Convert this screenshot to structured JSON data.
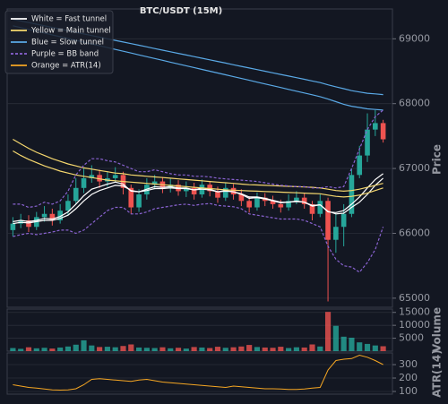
{
  "chart_data": {
    "type": "candlestick",
    "title": "BTC/USDT (15M)",
    "ylabel": "Price",
    "grid": true,
    "up_color": "#26a69a",
    "down_color": "#ef5350",
    "ylim": [
      64860,
      69460
    ],
    "yticks": [
      65000,
      66000,
      67000,
      68000,
      69000
    ],
    "candles": {
      "open": [
        66050,
        66150,
        66200,
        66100,
        66250,
        66300,
        66200,
        66350,
        66500,
        66700,
        66850,
        66900,
        66800,
        66850,
        66900,
        66700,
        66400,
        66600,
        66750,
        66800,
        66700,
        66750,
        66650,
        66700,
        66600,
        66750,
        66650,
        66550,
        66700,
        66600,
        66500,
        66400,
        66550,
        66500,
        66450,
        66400,
        66500,
        66550,
        66450,
        66300,
        66500,
        65900,
        66100,
        66300,
        66900,
        67200,
        67600,
        67700
      ],
      "high": [
        66250,
        66300,
        66280,
        66330,
        66420,
        66380,
        66450,
        66600,
        66850,
        67000,
        67050,
        66980,
        66950,
        67020,
        66950,
        66750,
        66680,
        66850,
        66900,
        66870,
        66850,
        66820,
        66800,
        66780,
        66830,
        66800,
        66720,
        66780,
        66760,
        66680,
        66570,
        66630,
        66620,
        66580,
        66520,
        66600,
        66650,
        66620,
        66500,
        66600,
        66550,
        66300,
        66450,
        67000,
        67350,
        67850,
        67900,
        67750
      ],
      "low": [
        65950,
        66080,
        66020,
        66050,
        66180,
        66120,
        66150,
        66280,
        66450,
        66620,
        66780,
        66700,
        66720,
        66780,
        66600,
        66300,
        66330,
        66520,
        66680,
        66620,
        66630,
        66580,
        66560,
        66520,
        66550,
        66570,
        66470,
        66500,
        66520,
        66420,
        66320,
        66350,
        66420,
        66380,
        66320,
        66350,
        66450,
        66380,
        66200,
        66250,
        64950,
        65700,
        65800,
        66250,
        66850,
        67100,
        67500,
        67400
      ],
      "close": [
        66150,
        66200,
        66100,
        66250,
        66300,
        66200,
        66350,
        66500,
        66700,
        66850,
        66900,
        66800,
        66850,
        66900,
        66700,
        66400,
        66600,
        66750,
        66800,
        66700,
        66750,
        66650,
        66700,
        66600,
        66750,
        66650,
        66550,
        66700,
        66600,
        66500,
        66400,
        66550,
        66500,
        66450,
        66400,
        66500,
        66550,
        66450,
        66300,
        66500,
        65900,
        66100,
        66300,
        66900,
        67200,
        67600,
        67700,
        67450
      ]
    },
    "overlays": [
      {
        "name": "White = Fast tunnel",
        "color": "#ffffff",
        "style": "solid",
        "lines": [
          [
            66180,
            66200,
            66180,
            66200,
            66230,
            66220,
            66260,
            66330,
            66450,
            66580,
            66680,
            66720,
            66760,
            66790,
            66760,
            66650,
            66640,
            66680,
            66720,
            66710,
            66720,
            66700,
            66700,
            66670,
            66700,
            66680,
            66640,
            66660,
            66640,
            66600,
            66540,
            66550,
            66530,
            66500,
            66470,
            66480,
            66500,
            66480,
            66420,
            66440,
            66330,
            66320,
            66350,
            66450,
            66560,
            66700,
            66830,
            66920
          ],
          [
            66150,
            66170,
            66160,
            66180,
            66200,
            66200,
            66230,
            66280,
            66380,
            66500,
            66600,
            66660,
            66700,
            66740,
            66730,
            66660,
            66640,
            66660,
            66690,
            66690,
            66700,
            66690,
            66690,
            66670,
            66680,
            66670,
            66640,
            66650,
            66640,
            66610,
            66560,
            66560,
            66540,
            66510,
            66480,
            66480,
            66490,
            66480,
            66430,
            66440,
            66340,
            66300,
            66310,
            66400,
            66480,
            66600,
            66740,
            66850
          ]
        ]
      },
      {
        "name": "Yellow = Main tunnel",
        "color": "#f5d76e",
        "style": "solid",
        "lines": [
          [
            67450,
            67380,
            67310,
            67250,
            67200,
            67150,
            67110,
            67070,
            67040,
            67010,
            66990,
            66970,
            66950,
            66930,
            66920,
            66900,
            66890,
            66880,
            66870,
            66860,
            66850,
            66840,
            66830,
            66820,
            66810,
            66800,
            66790,
            66780,
            66770,
            66760,
            66750,
            66745,
            66740,
            66735,
            66730,
            66725,
            66720,
            66715,
            66710,
            66700,
            66680,
            66660,
            66650,
            66660,
            66680,
            66710,
            66740,
            66770
          ],
          [
            67270,
            67200,
            67140,
            67090,
            67040,
            67000,
            66960,
            66930,
            66900,
            66880,
            66860,
            66840,
            66820,
            66810,
            66800,
            66790,
            66780,
            66770,
            66760,
            66750,
            66740,
            66730,
            66720,
            66710,
            66700,
            66690,
            66680,
            66670,
            66665,
            66660,
            66655,
            66650,
            66645,
            66640,
            66635,
            66630,
            66625,
            66620,
            66615,
            66610,
            66590,
            66570,
            66560,
            66570,
            66590,
            66620,
            66660,
            66700
          ]
        ]
      },
      {
        "name": "Blue = Slow tunnel",
        "color": "#5aa9e6",
        "style": "solid",
        "lines": [
          [
            69300,
            69275,
            69250,
            69225,
            69200,
            69175,
            69150,
            69125,
            69100,
            69075,
            69050,
            69025,
            69000,
            68975,
            68950,
            68925,
            68900,
            68875,
            68850,
            68825,
            68800,
            68775,
            68750,
            68725,
            68700,
            68675,
            68650,
            68625,
            68600,
            68575,
            68550,
            68525,
            68500,
            68475,
            68450,
            68425,
            68400,
            68375,
            68350,
            68325,
            68290,
            68260,
            68230,
            68200,
            68180,
            68160,
            68150,
            68140
          ],
          [
            69200,
            69172,
            69144,
            69116,
            69088,
            69060,
            69032,
            69004,
            68976,
            68948,
            68920,
            68892,
            68864,
            68836,
            68808,
            68780,
            68752,
            68724,
            68696,
            68668,
            68640,
            68612,
            68584,
            68556,
            68528,
            68500,
            68472,
            68444,
            68416,
            68388,
            68360,
            68332,
            68304,
            68276,
            68248,
            68220,
            68192,
            68164,
            68136,
            68108,
            68070,
            68030,
            67990,
            67960,
            67940,
            67920,
            67910,
            67900
          ]
        ]
      },
      {
        "name": "Purple = BB band",
        "color": "#8a63d2",
        "style": "dashed",
        "lines": [
          [
            66450,
            66450,
            66400,
            66420,
            66480,
            66450,
            66500,
            66650,
            66900,
            67050,
            67150,
            67150,
            67120,
            67100,
            67050,
            67000,
            66950,
            66950,
            66980,
            66950,
            66920,
            66900,
            66900,
            66880,
            66880,
            66870,
            66850,
            66840,
            66830,
            66820,
            66810,
            66800,
            66780,
            66760,
            66740,
            66730,
            66720,
            66720,
            66700,
            66700,
            66720,
            66700,
            66720,
            67000,
            67300,
            67600,
            67800,
            67900
          ],
          [
            65950,
            65980,
            66000,
            65980,
            66000,
            66020,
            66050,
            66050,
            66000,
            66050,
            66150,
            66250,
            66350,
            66400,
            66400,
            66300,
            66300,
            66330,
            66380,
            66400,
            66420,
            66440,
            66450,
            66430,
            66450,
            66460,
            66430,
            66420,
            66410,
            66380,
            66300,
            66280,
            66260,
            66240,
            66220,
            66220,
            66220,
            66200,
            66150,
            66100,
            65800,
            65600,
            65500,
            65480,
            65400,
            65550,
            65750,
            66100
          ]
        ]
      }
    ],
    "volume": {
      "ylabel": "Volume",
      "ylim": [
        0,
        16300
      ],
      "yticks": [
        5000,
        10000,
        15000
      ],
      "values": [
        1200,
        900,
        1500,
        1100,
        1300,
        1000,
        1400,
        1800,
        2500,
        4200,
        2200,
        1600,
        1700,
        1500,
        2000,
        2600,
        1400,
        1300,
        1200,
        1500,
        1100,
        1300,
        1000,
        1600,
        1400,
        1200,
        1700,
        1300,
        1500,
        1800,
        2400,
        1600,
        1400,
        1300,
        1700,
        1200,
        1500,
        1400,
        2600,
        1800,
        15200,
        9800,
        5600,
        5200,
        3400,
        2800,
        2200,
        1900
      ]
    },
    "atr": {
      "name": "Orange = ATR(14)",
      "ylabel": "ATR(14)",
      "color": "#f5a623",
      "ylim": [
        80,
        387
      ],
      "yticks": [
        100,
        200,
        300
      ],
      "values": [
        150,
        140,
        130,
        125,
        118,
        112,
        110,
        112,
        120,
        150,
        190,
        195,
        190,
        185,
        180,
        175,
        185,
        190,
        180,
        170,
        165,
        160,
        155,
        150,
        145,
        140,
        135,
        130,
        140,
        135,
        130,
        125,
        120,
        120,
        118,
        115,
        115,
        118,
        125,
        130,
        260,
        330,
        340,
        345,
        370,
        355,
        330,
        300
      ]
    }
  }
}
